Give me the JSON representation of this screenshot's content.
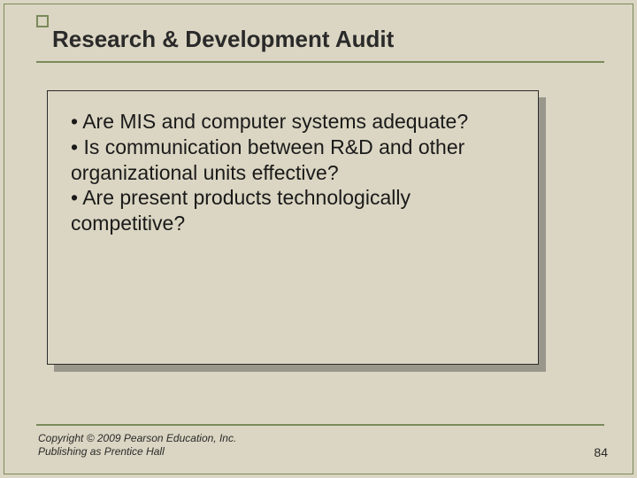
{
  "slide": {
    "title": "Research & Development Audit",
    "title_fontsize": 26,
    "title_color": "#2a2a2a",
    "background_color": "#dbd6c3",
    "border_color": "#7a8a5a",
    "bullets": [
      "Are MIS and computer systems adequate?",
      "Is communication between R&D and other organizational units effective?",
      "Are present products technologically competitive?"
    ],
    "bullet_fontsize": 23,
    "bullet_color": "#1a1a1a",
    "content_box": {
      "fill": "#dbd6c3",
      "border": "#2a2a2a",
      "shadow": "#99978b"
    },
    "footer": {
      "copyright_line1": "Copyright © 2009 Pearson Education, Inc.",
      "copyright_line2": "Publishing as Prentice Hall",
      "page_number": "84",
      "fontsize": 12,
      "color": "#2a2a2a"
    }
  }
}
